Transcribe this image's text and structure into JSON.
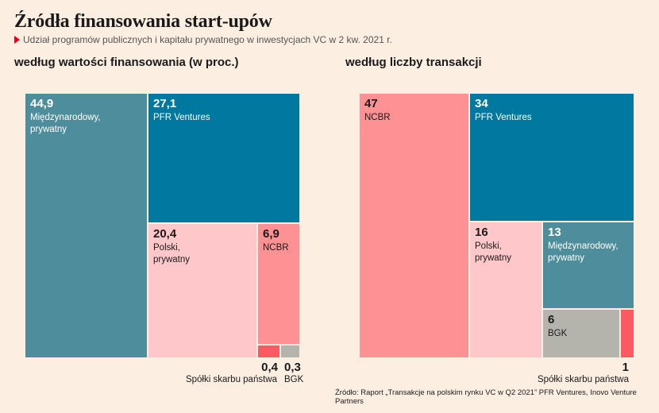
{
  "title": "Źródła finansowania start-upów",
  "subtitle": "Udział programów publicznych i kapitału prywatnego w inwestycjach VC w 2 kw. 2021 r.",
  "source": "Źródło: Raport „Transakcje na polskim rynku VC w Q2 2021” PFR Ventures, Inovo Venture Partners",
  "colors": {
    "background": "#fdeee2",
    "accent": "#e2001a",
    "miedzynarodowy": "#4e8d9c",
    "pfr": "#00789f",
    "polski": "#fec7c9",
    "ncbr": "#fd9193",
    "skarb": "#fb5a62",
    "bgk": "#b4b4ac"
  },
  "chart_data": [
    {
      "type": "treemap",
      "title": "według wartości finansowania (w proc.)",
      "items": [
        {
          "value": "44,9",
          "label": "Międzynarodowy,\nprywatny",
          "num": 44.9,
          "color_key": "miedzynarodowy"
        },
        {
          "value": "27,1",
          "label": "PFR Ventures",
          "num": 27.1,
          "color_key": "pfr"
        },
        {
          "value": "20,4",
          "label": "Polski,\nprywatny",
          "num": 20.4,
          "color_key": "polski"
        },
        {
          "value": "6,9",
          "label": "NCBR",
          "num": 6.9,
          "color_key": "ncbr"
        },
        {
          "value": "0,4",
          "label": "Spółki skarbu państwa",
          "num": 0.4,
          "color_key": "skarb"
        },
        {
          "value": "0,3",
          "label": "BGK",
          "num": 0.3,
          "color_key": "bgk"
        }
      ]
    },
    {
      "type": "treemap",
      "title": "według liczby transakcji",
      "items": [
        {
          "value": "47",
          "label": "NCBR",
          "num": 47,
          "color_key": "ncbr"
        },
        {
          "value": "34",
          "label": "PFR Ventures",
          "num": 34,
          "color_key": "pfr"
        },
        {
          "value": "16",
          "label": "Polski,\nprywatny",
          "num": 16,
          "color_key": "polski"
        },
        {
          "value": "13",
          "label": "Międzynarodowy,\nprywatny",
          "num": 13,
          "color_key": "miedzynarodowy"
        },
        {
          "value": "6",
          "label": "BGK",
          "num": 6,
          "color_key": "bgk"
        },
        {
          "value": "1",
          "label": "Spółki skarbu państwa",
          "num": 1,
          "color_key": "skarb"
        }
      ]
    }
  ]
}
